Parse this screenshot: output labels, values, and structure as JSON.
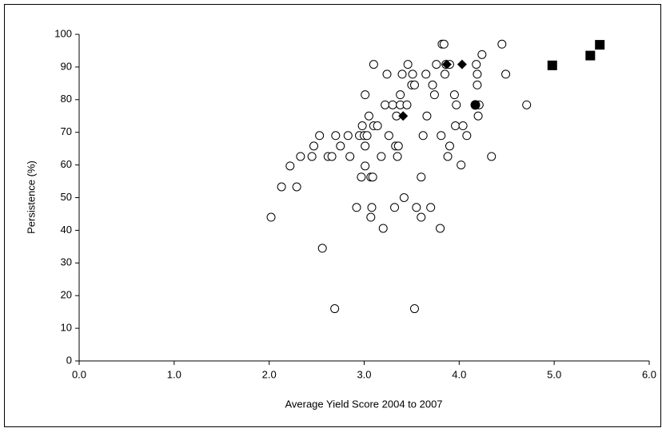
{
  "chart_data": {
    "type": "scatter",
    "x_label": "Average Yield Score 2004 to 2007",
    "y_label": "Persistence (%)",
    "xlim": [
      0,
      6
    ],
    "ylim": [
      0,
      100
    ],
    "xticks": [
      {
        "value": 0,
        "label": "0.0"
      },
      {
        "value": 1,
        "label": "1.0"
      },
      {
        "value": 2,
        "label": "2.0"
      },
      {
        "value": 3,
        "label": "3.0"
      },
      {
        "value": 4,
        "label": "4.0"
      },
      {
        "value": 5,
        "label": "5.0"
      },
      {
        "value": 6,
        "label": "6.0"
      }
    ],
    "yticks": [
      0,
      10,
      20,
      30,
      40,
      50,
      60,
      70,
      80,
      90,
      100
    ],
    "grid": false,
    "series": [
      {
        "marker": "circle-open",
        "color": "#000000",
        "x": [
          2.02,
          2.13,
          2.22,
          2.29,
          2.33,
          2.45,
          2.47,
          2.53,
          2.56,
          2.62,
          2.66,
          2.69,
          2.7,
          2.75,
          2.83,
          2.85,
          2.92,
          2.95,
          2.98,
          2.97,
          3.0,
          3.01,
          3.01,
          3.01,
          3.03,
          3.05,
          3.07,
          3.08,
          3.07,
          3.09,
          3.1,
          3.1,
          3.14,
          3.18,
          3.2,
          3.22,
          3.24,
          3.26,
          3.3,
          3.32,
          3.33,
          3.34,
          3.35,
          3.36,
          3.38,
          3.38,
          3.4,
          3.42,
          3.45,
          3.46,
          3.5,
          3.51,
          3.53,
          3.53,
          3.55,
          3.6,
          3.6,
          3.62,
          3.65,
          3.66,
          3.7,
          3.72,
          3.74,
          3.76,
          3.8,
          3.81,
          3.82,
          3.84,
          3.85,
          3.86,
          3.88,
          3.9,
          3.9,
          3.95,
          3.96,
          3.97,
          4.02,
          4.04,
          4.08,
          4.18,
          4.19,
          4.19,
          4.21,
          4.2,
          4.24,
          4.34,
          4.45,
          4.49,
          4.71
        ],
        "values": [
          44,
          53.3,
          59.7,
          53.3,
          62.6,
          62.6,
          65.8,
          69,
          34.5,
          62.6,
          62.6,
          16,
          69,
          65.8,
          69,
          62.6,
          47,
          69,
          72,
          56.3,
          69,
          65.8,
          81.5,
          59.7,
          69,
          75,
          44,
          47,
          56.3,
          56.3,
          72,
          90.8,
          72,
          62.6,
          40.6,
          78.4,
          87.8,
          69,
          78.4,
          47,
          65.8,
          75,
          62.6,
          65.8,
          81.5,
          78.4,
          87.8,
          50,
          78.4,
          90.8,
          84.5,
          87.8,
          84.5,
          16,
          47,
          44,
          56.3,
          69,
          87.8,
          75,
          47,
          84.5,
          81.5,
          90.8,
          40.6,
          69,
          97,
          97,
          87.8,
          90.8,
          62.6,
          65.8,
          90.8,
          81.5,
          72,
          78.4,
          60,
          72,
          69,
          90.8,
          84.5,
          87.8,
          78.4,
          75,
          93.8,
          62.6,
          97,
          87.8,
          78.4
        ]
      },
      {
        "marker": "diamond",
        "color": "#000000",
        "x": [
          3.41,
          3.87,
          4.03
        ],
        "values": [
          75,
          90.8,
          90.8
        ]
      },
      {
        "marker": "circle",
        "color": "#000000",
        "x": [
          4.17
        ],
        "values": [
          78.4
        ]
      },
      {
        "marker": "square",
        "color": "#000000",
        "x": [
          4.98,
          5.38,
          5.48
        ],
        "values": [
          90.5,
          93.5,
          96.8
        ]
      }
    ]
  }
}
